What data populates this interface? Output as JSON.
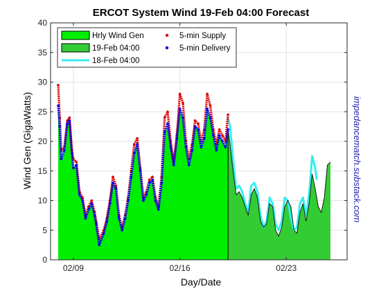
{
  "chart_data": {
    "type": "area",
    "title": "ERCOT System Wind  19-Feb 04:00 Forecast",
    "xlabel": "Day/Date",
    "ylabel": "Wind Gen (GigaWatts)",
    "side_label": "impedancematch.substack.com",
    "x_unit": "days (0 = 02/09 00:00)",
    "xlim": [
      -1.5,
      18
    ],
    "ylim": [
      0,
      40
    ],
    "y_ticks": [
      0,
      5,
      10,
      15,
      20,
      25,
      30,
      35,
      40
    ],
    "x_ticks": [
      {
        "x": 0,
        "label": "02/09"
      },
      {
        "x": 7,
        "label": "02/16"
      },
      {
        "x": 14,
        "label": "02/23"
      }
    ],
    "grid": true,
    "legend_position": "top-left",
    "forecast_start_x": 10.17,
    "colors": {
      "hourly": "#00ee00",
      "forecast_fill": "#33cc33",
      "prev_forecast": "#33eeee",
      "supply": "#dd0000",
      "delivery": "#0000ee"
    },
    "legend": [
      {
        "label": "Hrly Wind Gen",
        "kind": "box",
        "color": "#00ee00"
      },
      {
        "label": "19-Feb 04:00",
        "kind": "box",
        "color": "#33cc33"
      },
      {
        "label": "18-Feb 04:00",
        "kind": "line",
        "color": "#33eeee"
      },
      {
        "label": "5-min Supply",
        "kind": "dot",
        "color": "#dd0000"
      },
      {
        "label": "5-min Delivery",
        "kind": "dot",
        "color": "#0000ee"
      }
    ],
    "series": [
      {
        "name": "Hrly Wind Gen",
        "x": [
          -1.0,
          -0.9,
          -0.8,
          -0.6,
          -0.4,
          -0.25,
          -0.1,
          0.0,
          0.2,
          0.4,
          0.6,
          0.8,
          1.0,
          1.2,
          1.4,
          1.5,
          1.7,
          2.0,
          2.2,
          2.4,
          2.6,
          2.8,
          3.0,
          3.2,
          3.4,
          3.6,
          3.8,
          4.0,
          4.2,
          4.4,
          4.6,
          4.8,
          5.0,
          5.2,
          5.4,
          5.6,
          5.8,
          6.0,
          6.2,
          6.4,
          6.6,
          6.8,
          7.0,
          7.2,
          7.4,
          7.6,
          7.8,
          8.0,
          8.2,
          8.4,
          8.6,
          8.8,
          9.0,
          9.2,
          9.4,
          9.6,
          9.8,
          10.0,
          10.17
        ],
        "y": [
          25.5,
          22.0,
          16.5,
          18.0,
          22.5,
          23.5,
          18.0,
          15.5,
          16.0,
          11.0,
          10.0,
          7.0,
          8.5,
          9.5,
          7.5,
          6.0,
          3.0,
          4.5,
          6.5,
          9.5,
          13.0,
          12.0,
          7.0,
          5.0,
          7.0,
          10.0,
          14.0,
          18.0,
          19.5,
          15.0,
          10.0,
          11.0,
          13.0,
          13.5,
          10.0,
          8.5,
          13.0,
          21.0,
          22.5,
          19.0,
          16.0,
          20.5,
          25.0,
          24.0,
          19.0,
          16.0,
          18.5,
          22.5,
          22.0,
          19.0,
          20.5,
          25.0,
          24.0,
          21.0,
          18.5,
          21.0,
          20.0,
          19.0,
          22.0
        ]
      },
      {
        "name": "19-Feb 04:00",
        "x": [
          10.17,
          10.3,
          10.5,
          10.7,
          10.9,
          11.1,
          11.3,
          11.5,
          11.7,
          11.9,
          12.1,
          12.3,
          12.5,
          12.7,
          12.9,
          13.1,
          13.3,
          13.5,
          13.7,
          13.9,
          14.1,
          14.3,
          14.5,
          14.7,
          14.9,
          15.1,
          15.3,
          15.5,
          15.7,
          15.9,
          16.1,
          16.3,
          16.5,
          16.7,
          16.9
        ],
        "y": [
          22.0,
          19.5,
          15.0,
          11.0,
          11.5,
          10.5,
          9.0,
          7.5,
          11.0,
          12.0,
          10.5,
          6.5,
          5.5,
          6.0,
          9.5,
          9.0,
          5.0,
          4.0,
          5.5,
          9.0,
          10.0,
          9.0,
          5.0,
          4.5,
          8.0,
          9.5,
          6.5,
          9.5,
          14.5,
          12.0,
          9.0,
          8.0,
          10.5,
          16.0,
          16.5
        ]
      },
      {
        "name": "18-Feb 04:00",
        "x": [
          10.17,
          10.3,
          10.5,
          10.7,
          10.9,
          11.1,
          11.3,
          11.5,
          11.7,
          11.9,
          12.1,
          12.3,
          12.5,
          12.7,
          12.9,
          13.1,
          13.3,
          13.5,
          13.7,
          13.9,
          14.1,
          14.3,
          14.5,
          14.7,
          14.9,
          15.1,
          15.3,
          15.5,
          15.7,
          15.9,
          16.0
        ],
        "y": [
          24.0,
          22.5,
          17.0,
          12.0,
          12.5,
          11.5,
          9.5,
          8.0,
          12.5,
          13.0,
          11.5,
          7.5,
          5.5,
          6.5,
          10.5,
          9.5,
          6.0,
          5.0,
          6.5,
          10.5,
          10.0,
          7.0,
          5.0,
          5.5,
          9.5,
          10.5,
          7.5,
          11.0,
          17.5,
          15.5,
          13.5
        ]
      },
      {
        "name": "5-min Supply",
        "x": [
          -1.0,
          -0.9,
          -0.8,
          -0.6,
          -0.4,
          -0.25,
          -0.1,
          0.0,
          0.2,
          0.4,
          0.6,
          0.8,
          1.0,
          1.2,
          1.4,
          1.5,
          1.7,
          2.0,
          2.2,
          2.4,
          2.6,
          2.8,
          3.0,
          3.2,
          3.4,
          3.6,
          3.8,
          4.0,
          4.2,
          4.4,
          4.6,
          4.8,
          5.0,
          5.2,
          5.4,
          5.6,
          5.8,
          6.0,
          6.2,
          6.4,
          6.6,
          6.8,
          7.0,
          7.2,
          7.4,
          7.6,
          7.8,
          8.0,
          8.2,
          8.4,
          8.6,
          8.8,
          9.0,
          9.2,
          9.4,
          9.6,
          9.8,
          10.0,
          10.17
        ],
        "y": [
          29.5,
          24.0,
          18.5,
          19.0,
          23.5,
          24.0,
          18.5,
          17.0,
          16.5,
          11.5,
          10.5,
          7.5,
          9.0,
          10.0,
          8.0,
          6.5,
          3.5,
          5.0,
          7.0,
          10.0,
          14.0,
          12.5,
          7.5,
          5.5,
          7.5,
          10.5,
          15.0,
          19.5,
          20.5,
          15.5,
          10.5,
          11.5,
          13.5,
          14.0,
          10.5,
          9.0,
          14.0,
          24.0,
          25.0,
          20.0,
          16.5,
          21.0,
          28.0,
          26.5,
          20.0,
          17.0,
          19.5,
          23.5,
          23.0,
          20.0,
          22.0,
          28.0,
          26.0,
          22.0,
          19.5,
          22.0,
          21.0,
          20.0,
          24.5
        ]
      },
      {
        "name": "5-min Delivery",
        "x": [
          -1.0,
          -0.9,
          -0.8,
          -0.6,
          -0.4,
          -0.25,
          -0.1,
          0.0,
          0.2,
          0.4,
          0.6,
          0.8,
          1.0,
          1.2,
          1.4,
          1.5,
          1.7,
          2.0,
          2.2,
          2.4,
          2.6,
          2.8,
          3.0,
          3.2,
          3.4,
          3.6,
          3.8,
          4.0,
          4.2,
          4.4,
          4.6,
          4.8,
          5.0,
          5.2,
          5.4,
          5.6,
          5.8,
          6.0,
          6.2,
          6.4,
          6.6,
          6.8,
          7.0,
          7.2,
          7.4,
          7.6,
          7.8,
          8.0,
          8.2,
          8.4,
          8.6,
          8.8,
          9.0,
          9.2,
          9.4,
          9.6,
          9.8,
          10.0,
          10.17
        ],
        "y": [
          26.0,
          22.5,
          17.0,
          18.5,
          23.0,
          23.5,
          18.0,
          15.5,
          16.0,
          11.0,
          10.0,
          7.0,
          8.5,
          9.5,
          7.5,
          6.0,
          2.5,
          4.5,
          6.5,
          9.5,
          13.0,
          12.0,
          7.0,
          5.0,
          7.0,
          10.0,
          14.0,
          18.0,
          19.5,
          15.0,
          10.0,
          11.0,
          13.0,
          13.5,
          10.0,
          8.5,
          13.0,
          21.5,
          23.0,
          19.0,
          16.0,
          20.5,
          25.5,
          24.0,
          19.0,
          16.0,
          18.5,
          22.5,
          22.0,
          19.0,
          20.5,
          25.5,
          24.0,
          21.0,
          18.5,
          21.0,
          20.0,
          19.0,
          22.0
        ]
      }
    ]
  }
}
